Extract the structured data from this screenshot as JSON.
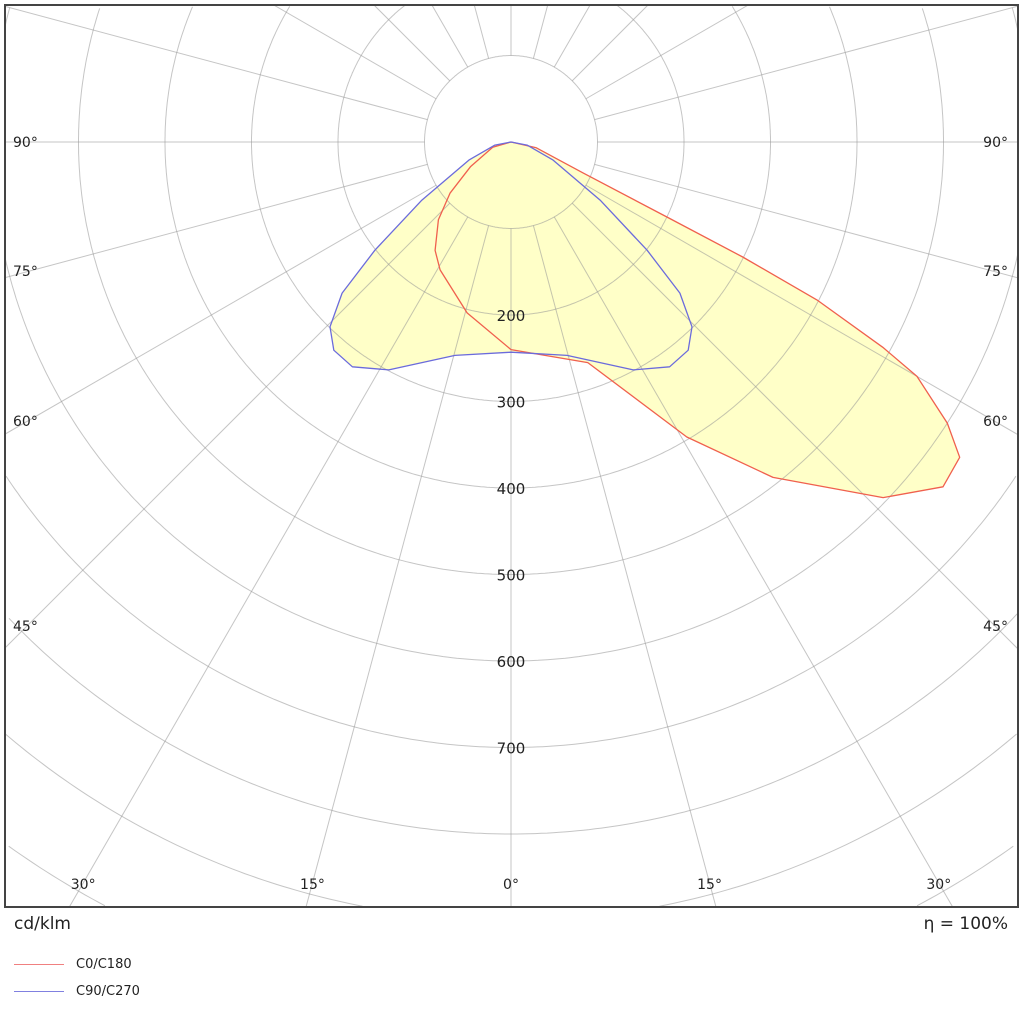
{
  "chart_data": {
    "type": "polar",
    "unit_label": "cd/klm",
    "efficiency_label": "η = 100%",
    "radial_step": 100,
    "radial_tick_labels": [
      "200",
      "300",
      "400",
      "500",
      "600",
      "700"
    ],
    "radial_tick_values": [
      200,
      300,
      400,
      500,
      600,
      700
    ],
    "angle_grid_step_deg": 15,
    "angle_labels_left": [
      {
        "deg": 90,
        "text": "90°"
      },
      {
        "deg": 75,
        "text": "75°"
      },
      {
        "deg": 60,
        "text": "60°"
      },
      {
        "deg": 45,
        "text": "45°"
      }
    ],
    "angle_labels_right": [
      {
        "deg": 90,
        "text": "90°"
      },
      {
        "deg": 75,
        "text": "75°"
      },
      {
        "deg": 60,
        "text": "60°"
      },
      {
        "deg": 45,
        "text": "45°"
      }
    ],
    "angle_labels_bottom": [
      {
        "deg": -30,
        "text": "30°"
      },
      {
        "deg": -15,
        "text": "15°"
      },
      {
        "deg": 0,
        "text": "0°"
      },
      {
        "deg": 15,
        "text": "15°"
      },
      {
        "deg": 30,
        "text": "30°"
      }
    ],
    "grid": true,
    "fill_color": "#ffffc8",
    "series": [
      {
        "name": "C0/C180",
        "color": "#f0604e",
        "points": [
          [
            -90,
            0
          ],
          [
            -74,
            22
          ],
          [
            -58.6,
            55
          ],
          [
            -50,
            92
          ],
          [
            -43,
            123
          ],
          [
            -35,
            153
          ],
          [
            -29,
            169
          ],
          [
            -14.4,
            204
          ],
          [
            0,
            240
          ],
          [
            19.2,
            270
          ],
          [
            30.8,
            397
          ],
          [
            38,
            492
          ],
          [
            46.3,
            595
          ],
          [
            51.4,
            639
          ],
          [
            54.9,
            634
          ],
          [
            57.2,
            600
          ],
          [
            60,
            542
          ],
          [
            61.1,
            491
          ],
          [
            62.7,
            398
          ],
          [
            63.6,
            299
          ],
          [
            64.3,
            200
          ],
          [
            66.7,
            91
          ],
          [
            77,
            30
          ],
          [
            90,
            0
          ]
        ]
      },
      {
        "name": "C90/C270",
        "color": "#6b6bdc",
        "points": [
          [
            -90,
            0
          ],
          [
            -79,
            19
          ],
          [
            -66.8,
            53
          ],
          [
            -56.9,
            123
          ],
          [
            -51.5,
            201
          ],
          [
            -48.2,
            262
          ],
          [
            -44.4,
            299
          ],
          [
            -40.4,
            316
          ],
          [
            -35.2,
            318
          ],
          [
            -28.2,
            299
          ],
          [
            -14.7,
            255
          ],
          [
            0,
            243
          ],
          [
            14.7,
            255
          ],
          [
            28.2,
            299
          ],
          [
            35.2,
            318
          ],
          [
            40.4,
            316
          ],
          [
            44.4,
            299
          ],
          [
            48.2,
            262
          ],
          [
            51.5,
            201
          ],
          [
            56.9,
            123
          ],
          [
            66.8,
            53
          ],
          [
            79,
            19
          ],
          [
            90,
            0
          ]
        ]
      }
    ]
  }
}
